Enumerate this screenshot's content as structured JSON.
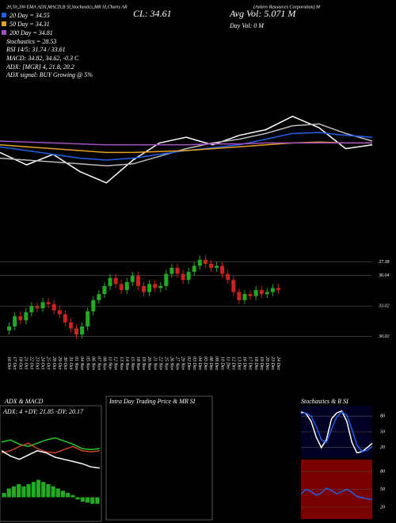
{
  "header": {
    "indicators": "20,50,200 EMA ADX,MACD,B SI,Stochastics,MR SI,Charts AR",
    "company": "(Antero Resources Corporation) M",
    "ma20": "20 Day = 34.55",
    "ma50": "50 Day = 34.31",
    "ma200": "200 Day = 34.81",
    "stochastics": "Stochastics = 28.53",
    "rsi": "RSI 14/5: 31.74 / 33.61",
    "macd": "MACD: 34.82, 34.62, -0.3 C",
    "adx": "ADX: [MGR] 4, 21.8, 20.2",
    "adx_signal": "ADX signal: BUY Growing @ 5%",
    "close": "CL: 34.61",
    "avg_vol": "Avg Vol: 5.071 M",
    "day_vol": "Day Vol: 0 M",
    "adx_macd_title": "ADX & MACD",
    "adx_values": "ADX: 4 +DY: 21.85 -DY: 20.17",
    "intraday_title": "Intra Day Trading Price & MR SI",
    "stoch_rsi_title": "Stochastics & R SI"
  },
  "chart_data": [
    {
      "type": "line",
      "ylim": [
        29,
        39
      ],
      "series": [
        {
          "color": "#ffffff",
          "values": [
            33.8,
            32.5,
            33.6,
            31.8,
            30.6,
            33.0,
            34.8,
            35.4,
            34.6,
            35.6,
            36.2,
            37.6,
            36.4,
            34.2,
            34.6
          ]
        },
        {
          "color": "#bbbbbb",
          "values": [
            33.2,
            33.0,
            32.8,
            32.6,
            32.4,
            32.6,
            33.4,
            34.2,
            34.8,
            35.2,
            35.8,
            36.6,
            36.8,
            35.8,
            35.0
          ]
        },
        {
          "color": "#2060e8",
          "values": [
            34.4,
            34.0,
            33.6,
            33.2,
            33.0,
            33.2,
            33.6,
            34.0,
            34.3,
            34.6,
            35.2,
            35.8,
            35.9,
            35.6,
            35.4
          ]
        },
        {
          "color": "#e8a020",
          "values": [
            34.6,
            34.4,
            34.2,
            34.0,
            33.8,
            33.8,
            33.9,
            34.0,
            34.2,
            34.4,
            34.6,
            34.8,
            34.9,
            34.8,
            34.8
          ]
        },
        {
          "color": "#a050c0",
          "values": [
            35.0,
            34.9,
            34.8,
            34.7,
            34.6,
            34.6,
            34.6,
            34.6,
            34.7,
            34.7,
            34.8,
            34.8,
            34.8,
            34.8,
            34.8
          ]
        }
      ]
    },
    {
      "type": "candlestick",
      "up_color": "#22aa22",
      "down_color": "#cc2222",
      "ylim": [
        28.8,
        38.6
      ],
      "yticks": [
        37.38,
        36.04,
        33.02,
        30.02
      ],
      "categories": [
        "16 Oct",
        "17 Oct",
        "18 Oct",
        "21 Oct",
        "22 Oct",
        "23 Oct",
        "24 Oct",
        "25 Oct",
        "28 Oct",
        "29 Oct",
        "30 Oct",
        "31 Oct",
        "01 Nov",
        "04 Nov",
        "05 Nov",
        "06 Nov",
        "07 Nov",
        "08 Nov",
        "11 Nov",
        "12 Nov",
        "13 Nov",
        "14 Nov",
        "15 Nov",
        "18 Nov",
        "19 Nov",
        "20 Nov",
        "21 Nov",
        "22 Nov",
        "25 Nov",
        "26 Nov",
        "27 Nov",
        "29 Nov",
        "02 Dec",
        "03 Dec",
        "04 Dec",
        "05 Dec",
        "06 Dec",
        "09 Dec",
        "10 Dec",
        "11 Dec",
        "12 Dec",
        "13 Dec",
        "16 Dec",
        "17 Dec",
        "18 Dec",
        "19 Dec",
        "20 Dec",
        "23 Dec",
        "24 Dec"
      ],
      "open": [
        30.6,
        31.0,
        32.0,
        31.6,
        32.4,
        33.0,
        32.8,
        33.4,
        33.2,
        32.6,
        32.2,
        31.4,
        30.8,
        30.2,
        31.0,
        32.5,
        33.6,
        34.2,
        35.0,
        35.8,
        35.2,
        34.6,
        35.4,
        36.0,
        35.0,
        34.4,
        35.2,
        34.8,
        35.0,
        36.2,
        36.8,
        36.2,
        35.6,
        36.4,
        37.0,
        37.6,
        37.2,
        36.8,
        37.0,
        36.2,
        35.6,
        34.4,
        33.6,
        34.2,
        34.0,
        34.6,
        34.2,
        34.4,
        34.8
      ],
      "high": [
        31.4,
        32.4,
        32.4,
        32.8,
        33.4,
        33.4,
        33.8,
        33.8,
        33.6,
        33.0,
        32.6,
        31.8,
        31.2,
        31.4,
        32.9,
        34.0,
        34.6,
        35.4,
        36.2,
        36.2,
        35.6,
        35.8,
        36.4,
        36.4,
        35.4,
        35.6,
        35.6,
        35.4,
        36.6,
        37.2,
        37.2,
        36.6,
        36.8,
        37.4,
        38.0,
        38.0,
        37.6,
        37.4,
        37.4,
        36.6,
        36.0,
        34.8,
        34.6,
        34.6,
        35.0,
        35.0,
        34.8,
        35.2,
        35.2
      ],
      "low": [
        30.2,
        30.6,
        31.2,
        31.2,
        32.0,
        32.4,
        32.4,
        32.8,
        32.2,
        31.8,
        31.0,
        30.4,
        29.8,
        29.8,
        30.6,
        32.1,
        33.2,
        33.8,
        34.6,
        34.8,
        34.2,
        34.2,
        35.0,
        34.6,
        34.0,
        34.0,
        34.4,
        34.4,
        34.6,
        35.8,
        35.8,
        35.2,
        35.2,
        36.0,
        36.6,
        36.8,
        36.4,
        36.4,
        35.8,
        35.2,
        34.0,
        33.2,
        33.2,
        33.6,
        33.6,
        33.8,
        33.8,
        34.0,
        34.2
      ],
      "close": [
        31.0,
        32.0,
        31.6,
        32.4,
        33.0,
        32.8,
        33.4,
        33.2,
        32.6,
        32.2,
        31.4,
        30.8,
        30.2,
        31.0,
        32.5,
        33.6,
        34.2,
        35.0,
        35.8,
        35.2,
        34.6,
        35.4,
        36.0,
        35.0,
        34.4,
        35.2,
        34.8,
        35.0,
        36.2,
        36.8,
        36.2,
        35.6,
        36.4,
        37.0,
        37.6,
        37.2,
        36.8,
        37.0,
        36.2,
        35.6,
        34.4,
        33.6,
        34.2,
        34.0,
        34.6,
        34.2,
        34.4,
        34.8,
        34.6
      ]
    },
    {
      "type": "line",
      "ylim": [
        0,
        50
      ],
      "series": [
        {
          "color": "#22cc22",
          "values": [
            28,
            30,
            26,
            24,
            27,
            30,
            32,
            29,
            26,
            22,
            21,
            22
          ]
        },
        {
          "color": "#cc4422",
          "values": [
            18,
            20,
            24,
            27,
            22,
            19,
            18,
            21,
            24,
            20,
            19,
            20
          ]
        },
        {
          "color": "#ffffff",
          "values": [
            20,
            15,
            12,
            16,
            20,
            18,
            14,
            12,
            10,
            8,
            5,
            4
          ]
        }
      ]
    },
    {
      "type": "bar",
      "color": "#22aa22",
      "ylim": [
        -1,
        1
      ],
      "values": [
        0.2,
        0.4,
        0.5,
        0.6,
        0.5,
        0.6,
        0.7,
        0.8,
        0.7,
        0.6,
        0.5,
        0.4,
        0.3,
        0.2,
        0.1,
        -0.1,
        -0.2,
        -0.25,
        -0.3,
        -0.3
      ]
    },
    {
      "type": "line",
      "background": "#000022",
      "ylim": [
        0,
        100
      ],
      "yticks": [
        80,
        50,
        20
      ],
      "series": [
        {
          "color": "#ffffff",
          "values": [
            88,
            85,
            70,
            40,
            20,
            35,
            75,
            86,
            90,
            70,
            30,
            10,
            12,
            20,
            28
          ]
        },
        {
          "color": "#2060e8",
          "values": [
            85,
            86,
            80,
            60,
            35,
            30,
            55,
            78,
            88,
            82,
            55,
            25,
            12,
            15,
            22
          ]
        }
      ]
    },
    {
      "type": "line",
      "background": "#7a0000",
      "ylim": [
        0,
        100
      ],
      "yticks": [
        80,
        50,
        20
      ],
      "series": [
        {
          "color": "#2060e8",
          "values": [
            42,
            50,
            46,
            40,
            44,
            52,
            48,
            42,
            46,
            50,
            45,
            38,
            36,
            34,
            33
          ]
        }
      ]
    }
  ]
}
